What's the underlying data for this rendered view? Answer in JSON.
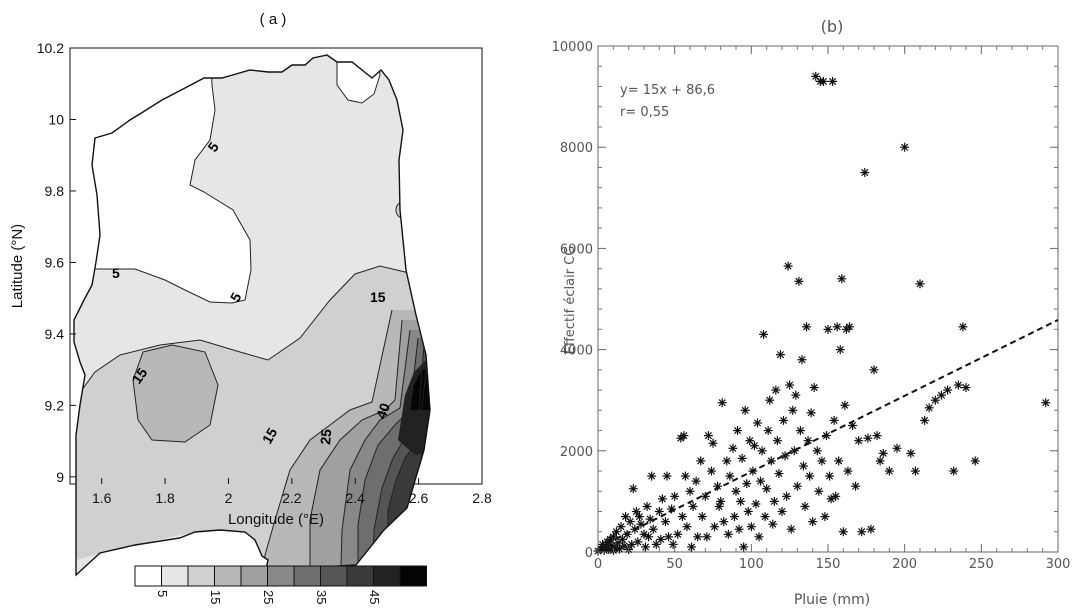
{
  "chart_data": [
    {
      "type": "contour-map",
      "title": "( a )",
      "xlabel": "Longitude (°E)",
      "ylabel": "Latitude (°N)",
      "xlim": [
        1.5,
        2.8
      ],
      "ylim": [
        8.98,
        10.2
      ],
      "x_ticks": [
        "1.6",
        "1.8",
        "2",
        "2.2",
        "2.4",
        "2.6",
        "2.8"
      ],
      "y_ticks": [
        "9",
        "9.2",
        "9.4",
        "9.6",
        "9.8",
        "10",
        "10.2"
      ],
      "contour_labels": [
        "5",
        "5",
        "5",
        "15",
        "15",
        "15",
        "25",
        "40"
      ],
      "levels": [
        5,
        10,
        15,
        20,
        25,
        30,
        35,
        40,
        45,
        50
      ],
      "colorbar": {
        "labels": [
          "5",
          "15",
          "25",
          "35",
          "45"
        ],
        "colors": [
          "#ffffff",
          "#e6e6e6",
          "#d0d0d0",
          "#b8b8b8",
          "#a0a0a0",
          "#888888",
          "#6e6e6e",
          "#555555",
          "#3a3a3a",
          "#222222",
          "#050505"
        ]
      }
    },
    {
      "type": "scatter",
      "title": "(b)",
      "xlabel": "Pluie (mm)",
      "ylabel": "Effectif éclair CG",
      "xlim": [
        0,
        300
      ],
      "ylim": [
        0,
        10000
      ],
      "x_ticks": [
        "0",
        "50",
        "100",
        "150",
        "200",
        "250",
        "300"
      ],
      "y_ticks": [
        "0",
        "2000",
        "4000",
        "6000",
        "8000",
        "10000"
      ],
      "annotations": [
        "y= 15x + 86,6",
        "r= 0,55"
      ],
      "regression": {
        "slope": 15,
        "intercept": 86.6,
        "x_range": [
          0,
          300
        ]
      },
      "points": [
        [
          0,
          20
        ],
        [
          2,
          60
        ],
        [
          3,
          150
        ],
        [
          4,
          30
        ],
        [
          5,
          100
        ],
        [
          6,
          200
        ],
        [
          7,
          50
        ],
        [
          8,
          250
        ],
        [
          9,
          130
        ],
        [
          10,
          300
        ],
        [
          10,
          30
        ],
        [
          11,
          80
        ],
        [
          12,
          400
        ],
        [
          13,
          180
        ],
        [
          14,
          60
        ],
        [
          15,
          500
        ],
        [
          16,
          250
        ],
        [
          17,
          120
        ],
        [
          18,
          700
        ],
        [
          19,
          350
        ],
        [
          20,
          50
        ],
        [
          21,
          600
        ],
        [
          22,
          150
        ],
        [
          23,
          1250
        ],
        [
          24,
          450
        ],
        [
          25,
          800
        ],
        [
          26,
          200
        ],
        [
          27,
          700
        ],
        [
          28,
          550
        ],
        [
          30,
          350
        ],
        [
          31,
          100
        ],
        [
          32,
          900
        ],
        [
          33,
          300
        ],
        [
          34,
          650
        ],
        [
          35,
          1500
        ],
        [
          36,
          450
        ],
        [
          38,
          150
        ],
        [
          40,
          800
        ],
        [
          41,
          250
        ],
        [
          42,
          1050
        ],
        [
          44,
          600
        ],
        [
          45,
          1500
        ],
        [
          46,
          300
        ],
        [
          48,
          850
        ],
        [
          49,
          150
        ],
        [
          50,
          1100
        ],
        [
          52,
          350
        ],
        [
          54,
          2250
        ],
        [
          55,
          700
        ],
        [
          56,
          2300
        ],
        [
          57,
          1500
        ],
        [
          58,
          500
        ],
        [
          60,
          1200
        ],
        [
          61,
          100
        ],
        [
          62,
          900
        ],
        [
          64,
          1400
        ],
        [
          65,
          300
        ],
        [
          67,
          1800
        ],
        [
          68,
          700
        ],
        [
          70,
          1100
        ],
        [
          71,
          300
        ],
        [
          72,
          2300
        ],
        [
          74,
          1600
        ],
        [
          75,
          2150
        ],
        [
          76,
          500
        ],
        [
          78,
          1300
        ],
        [
          79,
          900
        ],
        [
          80,
          1000
        ],
        [
          81,
          2950
        ],
        [
          82,
          600
        ],
        [
          84,
          1800
        ],
        [
          85,
          350
        ],
        [
          86,
          1500
        ],
        [
          88,
          2050
        ],
        [
          89,
          700
        ],
        [
          90,
          1200
        ],
        [
          91,
          2400
        ],
        [
          92,
          450
        ],
        [
          93,
          1000
        ],
        [
          94,
          1850
        ],
        [
          95,
          100
        ],
        [
          96,
          2800
        ],
        [
          97,
          1350
        ],
        [
          98,
          800
        ],
        [
          99,
          2200
        ],
        [
          100,
          500
        ],
        [
          101,
          1600
        ],
        [
          102,
          2100
        ],
        [
          103,
          950
        ],
        [
          104,
          2550
        ],
        [
          105,
          300
        ],
        [
          106,
          1400
        ],
        [
          107,
          2000
        ],
        [
          108,
          4300
        ],
        [
          109,
          700
        ],
        [
          110,
          1250
        ],
        [
          111,
          2400
        ],
        [
          112,
          3000
        ],
        [
          113,
          1800
        ],
        [
          114,
          550
        ],
        [
          115,
          1000
        ],
        [
          116,
          3200
        ],
        [
          117,
          2200
        ],
        [
          118,
          1550
        ],
        [
          119,
          3900
        ],
        [
          120,
          800
        ],
        [
          121,
          2600
        ],
        [
          122,
          1900
        ],
        [
          123,
          1100
        ],
        [
          124,
          5650
        ],
        [
          125,
          3300
        ],
        [
          126,
          450
        ],
        [
          127,
          2800
        ],
        [
          128,
          2000
        ],
        [
          129,
          3100
        ],
        [
          130,
          1300
        ],
        [
          131,
          5350
        ],
        [
          132,
          2400
        ],
        [
          133,
          3800
        ],
        [
          134,
          1700
        ],
        [
          135,
          900
        ],
        [
          136,
          4450
        ],
        [
          137,
          2200
        ],
        [
          138,
          1500
        ],
        [
          139,
          2750
        ],
        [
          140,
          600
        ],
        [
          141,
          3250
        ],
        [
          142,
          9400
        ],
        [
          143,
          2000
        ],
        [
          144,
          1200
        ],
        [
          145,
          9300
        ],
        [
          146,
          1800
        ],
        [
          147,
          9300
        ],
        [
          148,
          700
        ],
        [
          149,
          2300
        ],
        [
          150,
          4400
        ],
        [
          151,
          1500
        ],
        [
          152,
          1050
        ],
        [
          153,
          9300
        ],
        [
          154,
          2600
        ],
        [
          155,
          1100
        ],
        [
          156,
          4450
        ],
        [
          157,
          1800
        ],
        [
          158,
          4000
        ],
        [
          159,
          5400
        ],
        [
          160,
          400
        ],
        [
          161,
          2900
        ],
        [
          162,
          4400
        ],
        [
          163,
          1600
        ],
        [
          164,
          4450
        ],
        [
          166,
          2500
        ],
        [
          168,
          1300
        ],
        [
          170,
          2200
        ],
        [
          172,
          400
        ],
        [
          174,
          7500
        ],
        [
          176,
          2250
        ],
        [
          178,
          450
        ],
        [
          180,
          3600
        ],
        [
          182,
          2300
        ],
        [
          184,
          1800
        ],
        [
          186,
          1950
        ],
        [
          190,
          1600
        ],
        [
          195,
          2050
        ],
        [
          200,
          8000
        ],
        [
          204,
          1950
        ],
        [
          207,
          1600
        ],
        [
          210,
          5300
        ],
        [
          213,
          2600
        ],
        [
          216,
          2850
        ],
        [
          220,
          3000
        ],
        [
          224,
          3100
        ],
        [
          228,
          3200
        ],
        [
          232,
          1600
        ],
        [
          235,
          3300
        ],
        [
          238,
          4450
        ],
        [
          240,
          3250
        ],
        [
          246,
          1800
        ],
        [
          292,
          2950
        ]
      ]
    }
  ]
}
